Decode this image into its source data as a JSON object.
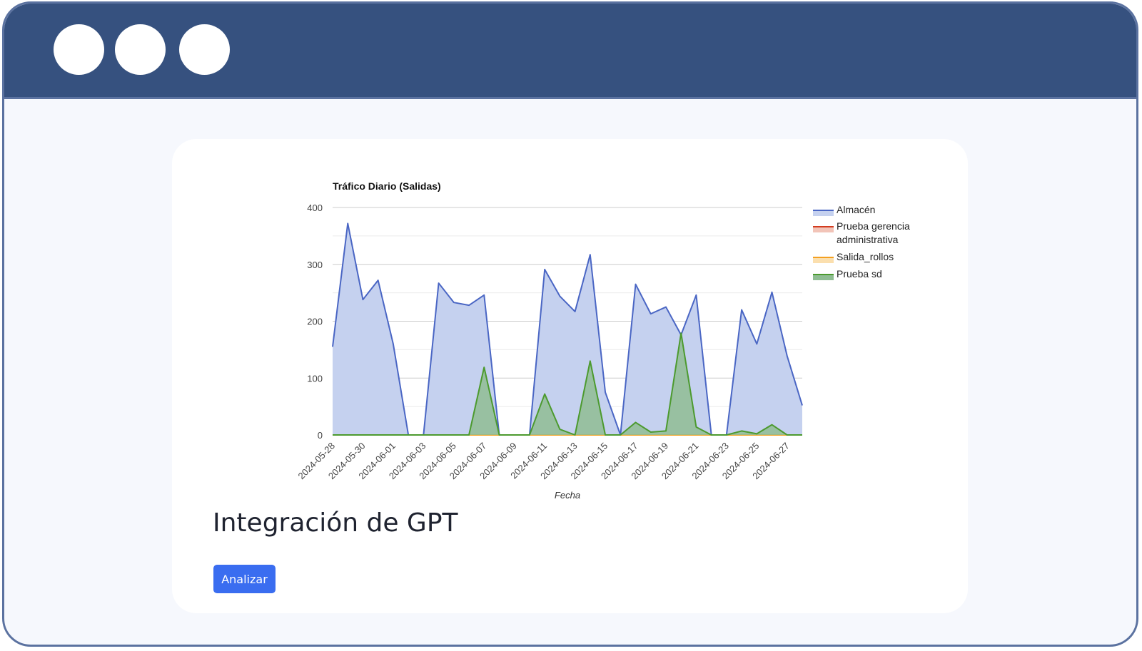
{
  "window": {
    "dots": [
      "",
      "",
      ""
    ],
    "colors": {
      "titlebar": "#36517f",
      "border": "#5b72a0",
      "background": "#f6f8fd"
    }
  },
  "main": {
    "section_title": "Integración de GPT",
    "analyze_label": "Analizar",
    "analyze_color": "#3a6df0"
  },
  "chart_data": {
    "type": "area",
    "title": "Tráfico Diario (Salidas)",
    "xlabel": "Fecha",
    "ylabel": "",
    "ylim": [
      0,
      400
    ],
    "yticks": [
      0,
      100,
      200,
      300,
      400
    ],
    "grid": true,
    "legend": "right",
    "x": [
      "2024-05-28",
      "2024-05-29",
      "2024-05-30",
      "2024-05-31",
      "2024-06-01",
      "2024-06-02",
      "2024-06-03",
      "2024-06-04",
      "2024-06-05",
      "2024-06-06",
      "2024-06-07",
      "2024-06-08",
      "2024-06-09",
      "2024-06-10",
      "2024-06-11",
      "2024-06-12",
      "2024-06-13",
      "2024-06-14",
      "2024-06-15",
      "2024-06-16",
      "2024-06-17",
      "2024-06-18",
      "2024-06-19",
      "2024-06-20",
      "2024-06-21",
      "2024-06-22",
      "2024-06-23",
      "2024-06-24",
      "2024-06-25",
      "2024-06-26",
      "2024-06-27",
      "2024-06-28"
    ],
    "xtick_labels": [
      "2024-05-28",
      "2024-05-30",
      "2024-06-01",
      "2024-06-03",
      "2024-06-05",
      "2024-06-07",
      "2024-06-09",
      "2024-06-11",
      "2024-06-13",
      "2024-06-15",
      "2024-06-17",
      "2024-06-19",
      "2024-06-21",
      "2024-06-23",
      "2024-06-25",
      "2024-06-27"
    ],
    "series": [
      {
        "name": "Almacén",
        "color": "#4a66c4",
        "fill": "#c5d1ef",
        "values": [
          155,
          372,
          238,
          272,
          160,
          0,
          0,
          267,
          233,
          228,
          246,
          0,
          0,
          0,
          291,
          244,
          217,
          317,
          75,
          0,
          265,
          213,
          225,
          176,
          246,
          0,
          0,
          220,
          160,
          251,
          139,
          52
        ]
      },
      {
        "name": "Prueba gerencia administrativa",
        "color": "#d33b1f",
        "fill": "#f2c4b8",
        "values": [
          0,
          0,
          0,
          0,
          0,
          0,
          0,
          0,
          0,
          0,
          0,
          0,
          0,
          0,
          0,
          0,
          0,
          0,
          0,
          0,
          0,
          0,
          0,
          0,
          0,
          0,
          0,
          0,
          0,
          0,
          0,
          0
        ]
      },
      {
        "name": "Salida_rollos",
        "color": "#f4a020",
        "fill": "#fbdfae",
        "values": [
          0,
          0,
          0,
          0,
          0,
          0,
          0,
          0,
          0,
          0,
          0,
          0,
          0,
          0,
          0,
          0,
          0,
          0,
          0,
          0,
          0,
          0,
          0,
          0,
          0,
          0,
          0,
          0,
          0,
          0,
          0,
          0
        ]
      },
      {
        "name": "Prueba sd",
        "color": "#4c9a2e",
        "fill": "#8fbd93",
        "values": [
          0,
          0,
          0,
          0,
          0,
          0,
          0,
          0,
          0,
          0,
          119,
          0,
          0,
          0,
          72,
          10,
          0,
          130,
          0,
          0,
          22,
          5,
          7,
          179,
          14,
          0,
          0,
          7,
          2,
          18,
          0,
          0
        ]
      }
    ]
  }
}
